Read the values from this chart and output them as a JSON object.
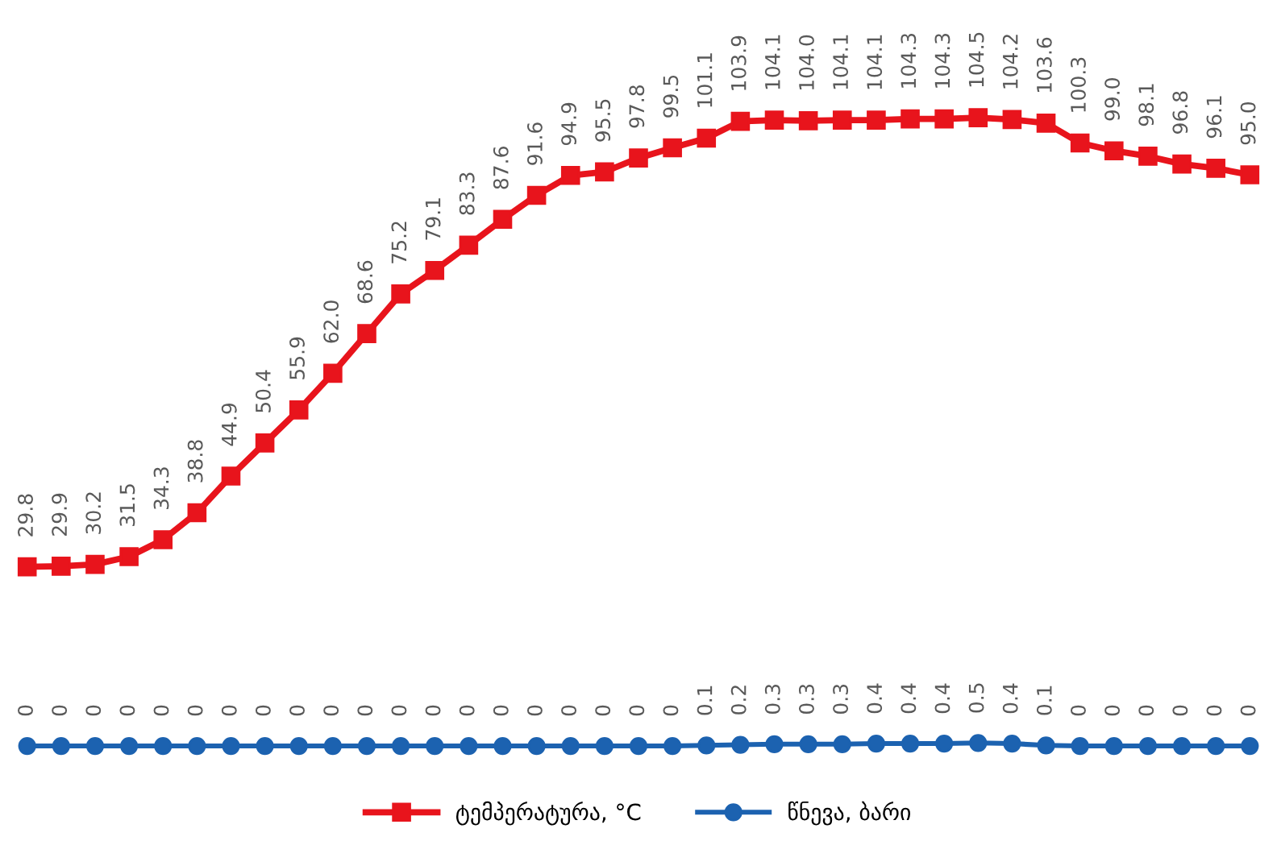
{
  "chart_data": {
    "type": "line",
    "categories": [
      null,
      null,
      null,
      null,
      null,
      null,
      null,
      null,
      null,
      null,
      null,
      null,
      null,
      null,
      null,
      null,
      null,
      null,
      null,
      null,
      null,
      null,
      null,
      null,
      null,
      null,
      null,
      null,
      null,
      null,
      null,
      null,
      null,
      null,
      null,
      null,
      null
    ],
    "series": [
      {
        "name": "ტემპერატურა, °C",
        "color": "#e8141c",
        "marker": "square",
        "values": [
          29.8,
          29.9,
          30.2,
          31.5,
          34.3,
          38.8,
          44.9,
          50.4,
          55.9,
          62.0,
          68.6,
          75.2,
          79.1,
          83.3,
          87.6,
          91.6,
          94.9,
          95.5,
          97.8,
          99.5,
          101.1,
          103.9,
          104.1,
          104.0,
          104.1,
          104.1,
          104.3,
          104.3,
          104.5,
          104.2,
          103.6,
          100.3,
          99.0,
          98.1,
          96.8,
          96.1,
          95.0
        ],
        "value_labels": [
          "29.8",
          "29.9",
          "30.2",
          "31.5",
          "34.3",
          "38.8",
          "44.9",
          "50.4",
          "55.9",
          "62.0",
          "68.6",
          "75.2",
          "79.1",
          "83.3",
          "87.6",
          "91.6",
          "94.9",
          "95.5",
          "97.8",
          "99.5",
          "101.1",
          "103.9",
          "104.1",
          "104.0",
          "104.1",
          "104.1",
          "104.3",
          "104.3",
          "104.5",
          "104.2",
          "103.6",
          "100.3",
          "99.0",
          "98.1",
          "96.8",
          "96.1",
          "95.0"
        ]
      },
      {
        "name": "წნევა, ბარი",
        "color": "#1c62b0",
        "marker": "circle",
        "values": [
          0,
          0,
          0,
          0,
          0,
          0,
          0,
          0,
          0,
          0,
          0,
          0,
          0,
          0,
          0,
          0,
          0,
          0,
          0,
          0,
          0.1,
          0.2,
          0.3,
          0.3,
          0.3,
          0.4,
          0.4,
          0.4,
          0.5,
          0.4,
          0.1,
          0,
          0,
          0,
          0,
          0,
          0
        ],
        "value_labels": [
          "0",
          "0",
          "0",
          "0",
          "0",
          "0",
          "0",
          "0",
          "0",
          "0",
          "0",
          "0",
          "0",
          "0",
          "0",
          "0",
          "0",
          "0",
          "0",
          "0",
          "0.1",
          "0.2",
          "0.3",
          "0.3",
          "0.3",
          "0.4",
          "0.4",
          "0.4",
          "0.5",
          "0.4",
          "0.1",
          "0",
          "0",
          "0",
          "0",
          "0",
          "0"
        ]
      }
    ],
    "legend": "bottom"
  }
}
